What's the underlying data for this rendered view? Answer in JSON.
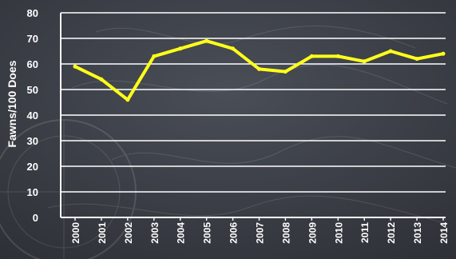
{
  "chart_data": {
    "type": "line",
    "title": "",
    "xlabel": "",
    "ylabel": "Fawns/100 Does",
    "x": [
      "2000",
      "2001",
      "2002",
      "2003",
      "2004",
      "2005",
      "2006",
      "2007",
      "2008",
      "2009",
      "2010",
      "2011",
      "2012",
      "2013",
      "2014"
    ],
    "series": [
      {
        "values": [
          59,
          54,
          46,
          63,
          66,
          69,
          66,
          58,
          57,
          63,
          63,
          61,
          65,
          62,
          64
        ]
      }
    ],
    "yticks": [
      0,
      10,
      20,
      30,
      40,
      50,
      60,
      70,
      80
    ],
    "ylim": [
      0,
      80
    ],
    "grid": true,
    "legend": "none",
    "colors": {
      "line": "#ffff1a",
      "grid": "#ffffff",
      "text": "#ffffff",
      "background": "#3a3d44"
    }
  }
}
